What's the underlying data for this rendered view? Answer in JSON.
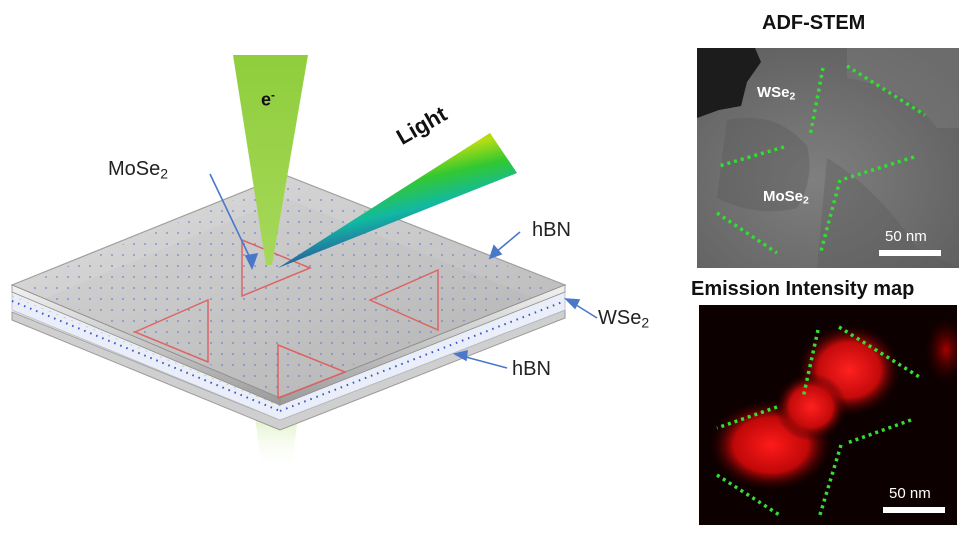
{
  "schematic": {
    "electron_label": "e",
    "electron_sup": "-",
    "light_label": "Light",
    "mose2_label": "MoSe",
    "mose2_sub": "2",
    "hbn_top_label": "hBN",
    "wse2_label": "WSe",
    "wse2_sub": "2",
    "hbn_bottom_label": "hBN"
  },
  "adf_panel": {
    "title": "ADF-STEM",
    "wse2_label": "WSe",
    "wse2_sub": "2",
    "mose2_label": "MoSe",
    "mose2_sub": "2",
    "scale_bar_label": "50 nm"
  },
  "emission_panel": {
    "title": "Emission Intensity map",
    "scale_bar_label": "50 nm"
  },
  "colors": {
    "beam_green": "#8fce3c",
    "guide_green": "#33dd33",
    "triangle_red": "#e05a5a",
    "emission_red": "#e01010",
    "arrow_blue": "#4a78c8"
  }
}
